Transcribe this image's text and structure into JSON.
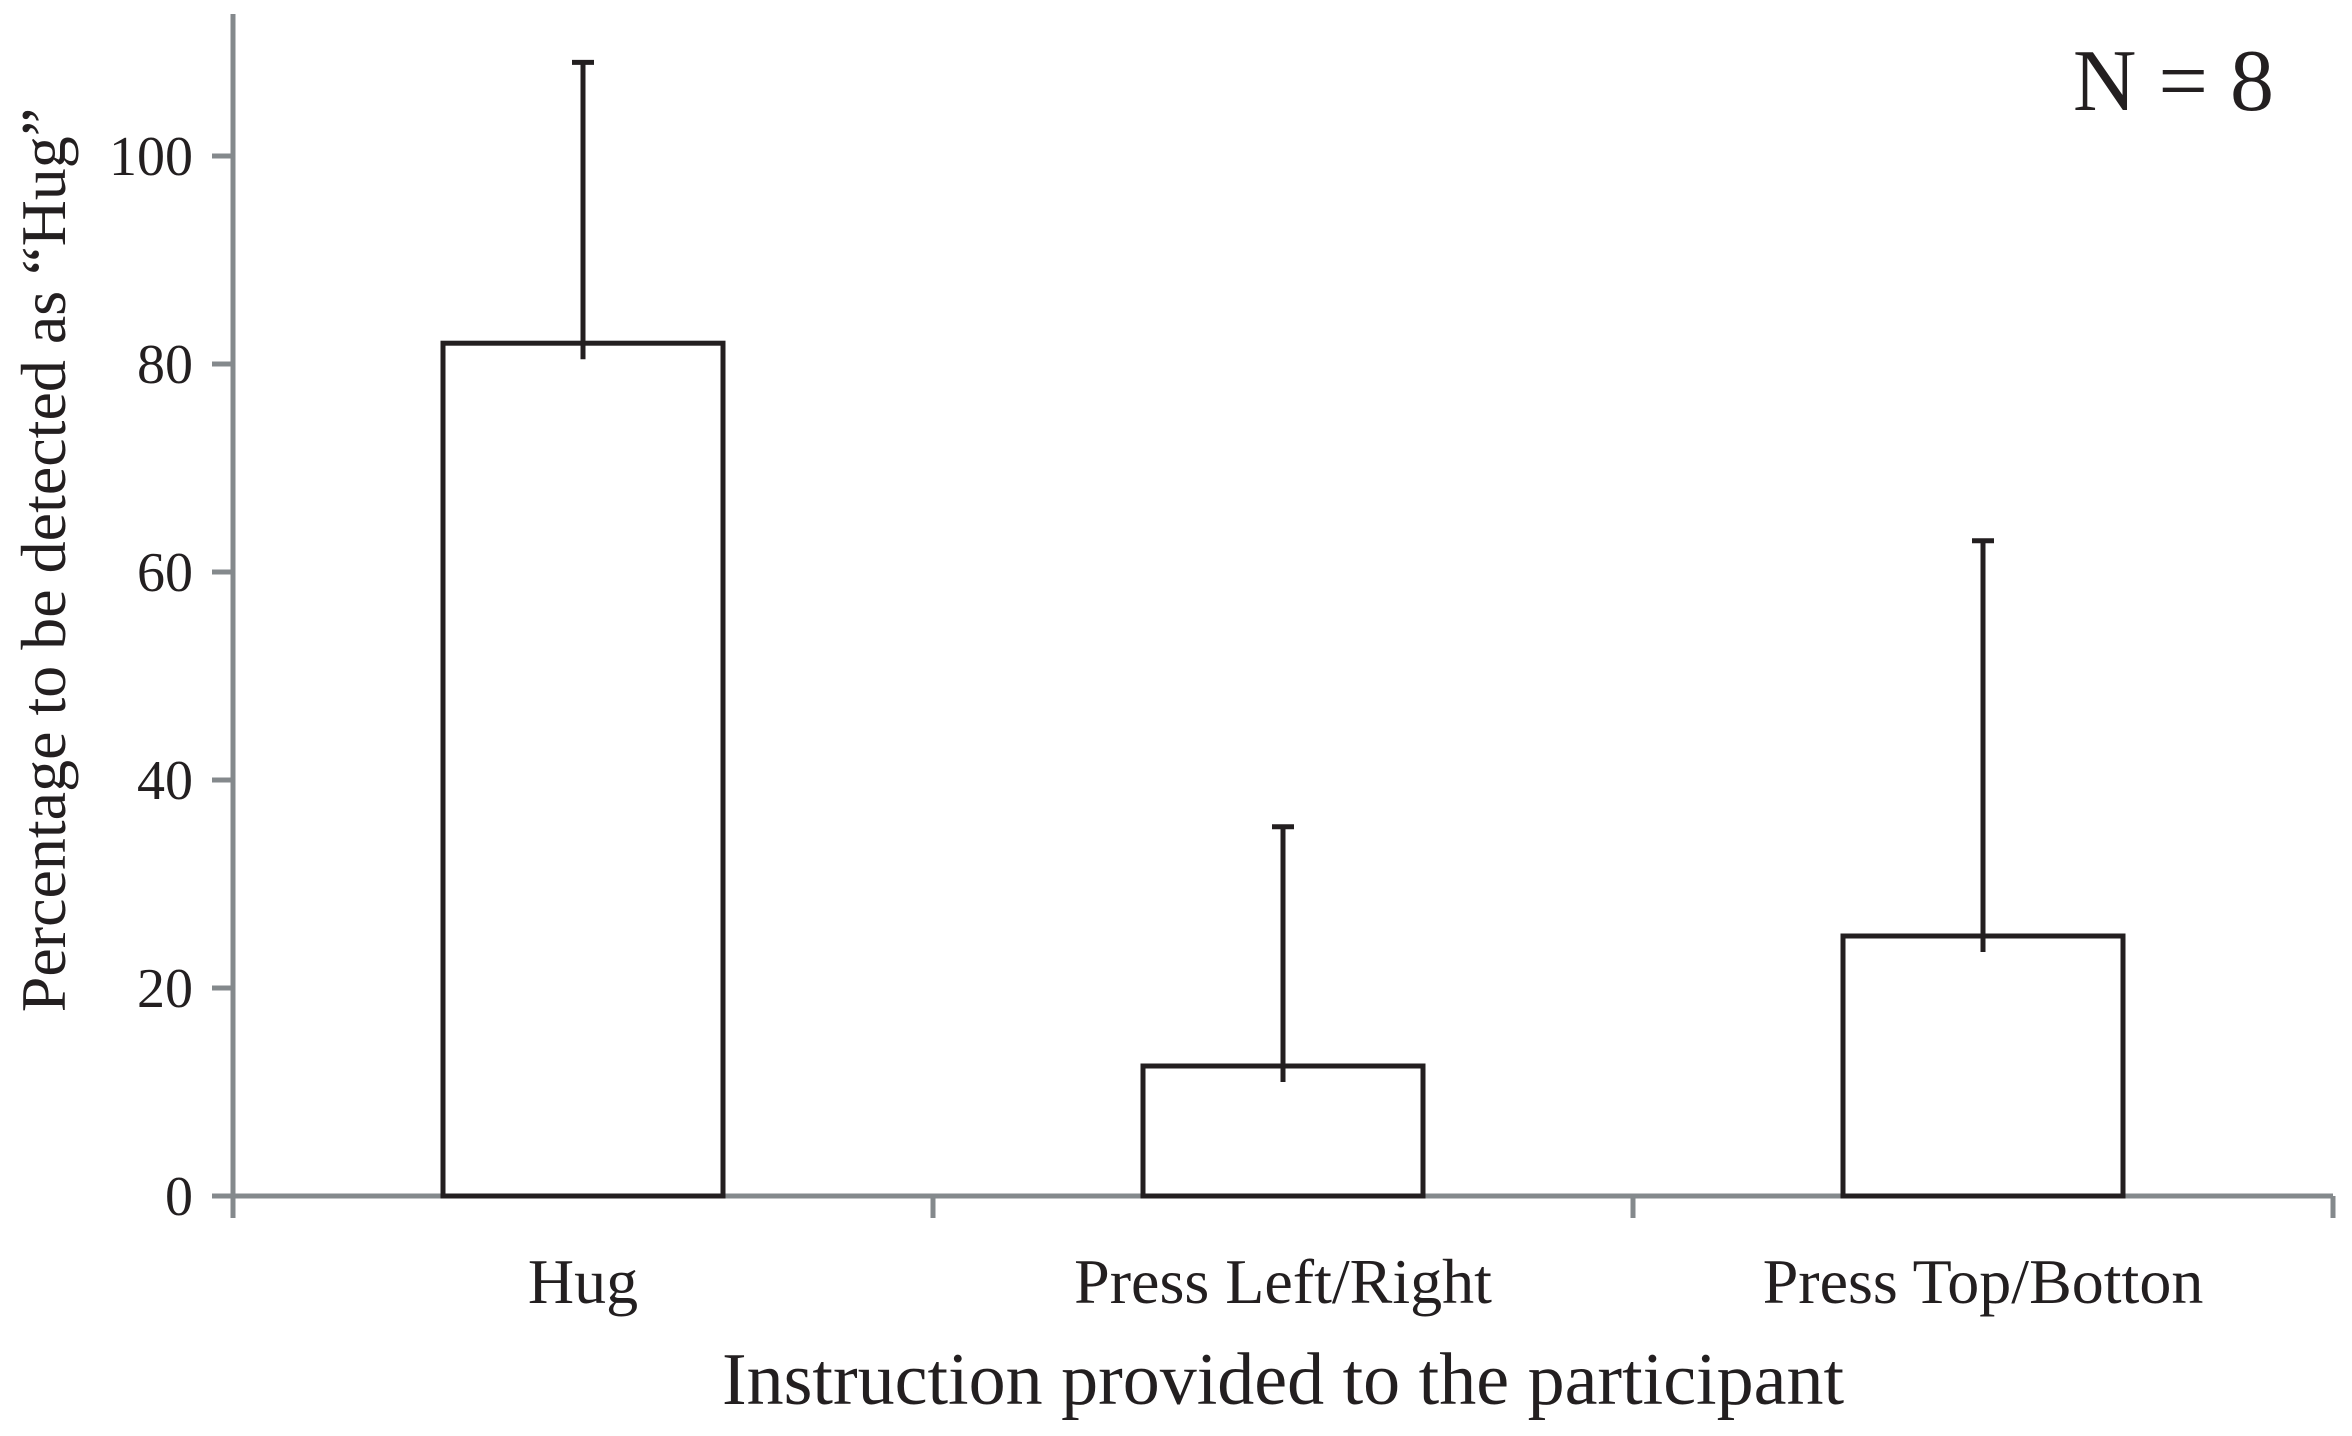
{
  "chart_data": {
    "type": "bar",
    "title": "",
    "xlabel": "Instruction provided to the participant",
    "ylabel": "Percentage to be detected as “Hug”",
    "categories": [
      "Hug",
      "Press Left/Right",
      "Press Top/Botton"
    ],
    "values": [
      82,
      12.5,
      25
    ],
    "errors_upper": [
      27,
      23,
      38
    ],
    "yticks": [
      0,
      20,
      40,
      60,
      80,
      100
    ],
    "ylim": [
      0,
      113.5
    ],
    "grid": false,
    "legend": null,
    "annotation": "N = 8",
    "bar_fill": "#ffffff",
    "bar_stroke": "#231f20",
    "error_color": "#231f20",
    "axis_color": "#84898c",
    "text_color": "#231f20"
  }
}
